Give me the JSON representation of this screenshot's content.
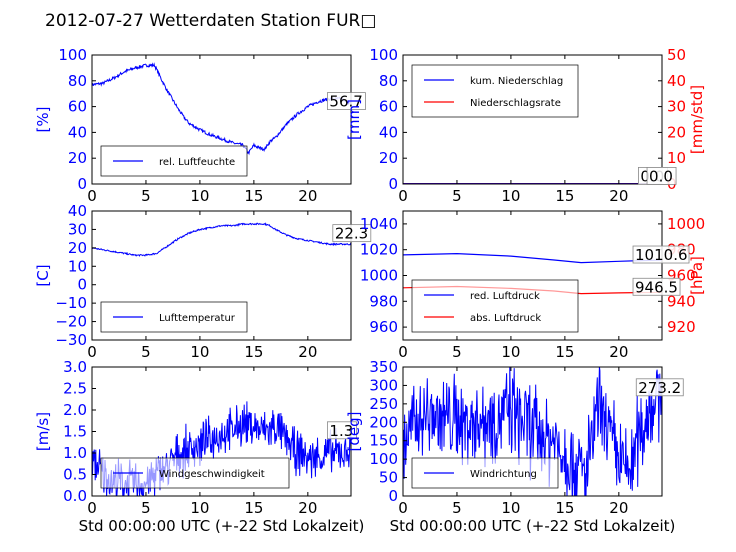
{
  "title": "2012-07-27 Wetterdaten Station FUR□",
  "colors": {
    "left_axis": "#0000ff",
    "right_axis": "#ff0000",
    "blue_line": "#0000ff",
    "red_line": "#ff0000",
    "axes": "#000000"
  },
  "chart_data": [
    {
      "id": "humidity",
      "type": "line",
      "ylabel": "[%]",
      "xlabel": "",
      "xlim": [
        0,
        24
      ],
      "ylim": [
        0,
        100
      ],
      "yticks": [
        "0",
        "20",
        "40",
        "60",
        "80",
        "100"
      ],
      "xticks": [
        "0",
        "5",
        "10",
        "15",
        "20"
      ],
      "legend_position": "lower-left",
      "series": [
        {
          "name": "rel. Luftfeuchte",
          "color": "#0000ff",
          "noise": 1.2,
          "points": [
            [
              0,
              77
            ],
            [
              1,
              78
            ],
            [
              2,
              82
            ],
            [
              3,
              87
            ],
            [
              4,
              90
            ],
            [
              5,
              92
            ],
            [
              5.8,
              92
            ],
            [
              6.5,
              80
            ],
            [
              7,
              72
            ],
            [
              7.5,
              65
            ],
            [
              8,
              58
            ],
            [
              8.5,
              52
            ],
            [
              9,
              47
            ],
            [
              10,
              42
            ],
            [
              11,
              38
            ],
            [
              12,
              35
            ],
            [
              13,
              32
            ],
            [
              14,
              30
            ],
            [
              14.5,
              24
            ],
            [
              15,
              30
            ],
            [
              15.5,
              28
            ],
            [
              16,
              27
            ],
            [
              16.5,
              33
            ],
            [
              17,
              36
            ],
            [
              18,
              46
            ],
            [
              19,
              54
            ],
            [
              20,
              60
            ],
            [
              21,
              64
            ],
            [
              22,
              66
            ],
            [
              23,
              66
            ],
            [
              24,
              62
            ]
          ]
        }
      ],
      "annotations": [
        {
          "text": "56.7",
          "x": 22.0,
          "y": 60
        }
      ]
    },
    {
      "id": "precipitation",
      "type": "line",
      "ylabel": "[mm]",
      "ylabel_right": "[mm/std]",
      "xlabel": "",
      "xlim": [
        0,
        24
      ],
      "ylim": [
        0,
        100
      ],
      "ylim_right": [
        0,
        50
      ],
      "yticks": [
        "0",
        "20",
        "40",
        "60",
        "80",
        "100"
      ],
      "yticks_right": [
        "0",
        "10",
        "20",
        "30",
        "40",
        "50"
      ],
      "xticks": [
        "0",
        "5",
        "10",
        "15",
        "20"
      ],
      "legend_position": "upper-left",
      "series": [
        {
          "name": "kum. Niederschlag",
          "color": "#0000ff",
          "noise": 0,
          "points": [
            [
              0,
              0.3
            ],
            [
              24,
              0.3
            ]
          ]
        },
        {
          "name": "Niederschlagsrate",
          "color": "#ff0000",
          "noise": 0,
          "points": [
            [
              0,
              0
            ],
            [
              24,
              0
            ]
          ]
        }
      ],
      "annotations": [
        {
          "text": "0.0",
          "x": 22.0,
          "y": 2
        },
        {
          "text": "0.0",
          "x": 22.8,
          "y": 2
        }
      ]
    },
    {
      "id": "temperature",
      "type": "line",
      "ylabel": "[C]",
      "xlabel": "",
      "xlim": [
        0,
        24
      ],
      "ylim": [
        -30,
        40
      ],
      "yticks": [
        "−30",
        "−20",
        "−10",
        "0",
        "10",
        "20",
        "30",
        "40"
      ],
      "xticks": [
        "0",
        "5",
        "10",
        "15",
        "20"
      ],
      "legend_position": "lower-left",
      "series": [
        {
          "name": "Lufttemperatur",
          "color": "#0000ff",
          "noise": 0.4,
          "points": [
            [
              0,
              20
            ],
            [
              1,
              19
            ],
            [
              2,
              18
            ],
            [
              3,
              17
            ],
            [
              4,
              16
            ],
            [
              5,
              16
            ],
            [
              6,
              17
            ],
            [
              7,
              21
            ],
            [
              8,
              25
            ],
            [
              9,
              28
            ],
            [
              10,
              30
            ],
            [
              11,
              31
            ],
            [
              12,
              32
            ],
            [
              13,
              32
            ],
            [
              14,
              33
            ],
            [
              15,
              33
            ],
            [
              16,
              33
            ],
            [
              16.5,
              32
            ],
            [
              17,
              30
            ],
            [
              18,
              27
            ],
            [
              19,
              25
            ],
            [
              20,
              24
            ],
            [
              21,
              23
            ],
            [
              22,
              22
            ],
            [
              23,
              22
            ],
            [
              24,
              22
            ]
          ]
        }
      ],
      "annotations": [
        {
          "text": "22.3",
          "x": 22.5,
          "y": 25
        }
      ]
    },
    {
      "id": "pressure",
      "type": "line",
      "ylabel": "",
      "ylabel_right": "[hPa]",
      "xlabel": "",
      "xlim": [
        0,
        24
      ],
      "ylim": [
        950,
        1050
      ],
      "ylim_right": [
        910,
        1010
      ],
      "yticks": [
        "960",
        "980",
        "1000",
        "1020",
        "1040"
      ],
      "yticks_right": [
        "920",
        "940",
        "960",
        "980",
        "1000"
      ],
      "xticks": [
        "0",
        "5",
        "10",
        "15",
        "20"
      ],
      "legend_position": "lower-left",
      "series": [
        {
          "name": "red. Luftdruck",
          "color": "#0000ff",
          "noise": 0,
          "points": [
            [
              0,
              1016
            ],
            [
              5,
              1017
            ],
            [
              10,
              1015
            ],
            [
              14,
              1012
            ],
            [
              16.5,
              1010
            ],
            [
              20,
              1011
            ],
            [
              24,
              1012
            ]
          ]
        },
        {
          "name": "abs. Luftdruck",
          "color": "#ff0000",
          "noise": 0,
          "points": [
            [
              0,
              990.5
            ],
            [
              5,
              991.5
            ],
            [
              10,
              990
            ],
            [
              14,
              988
            ],
            [
              16.5,
              986
            ],
            [
              20,
              986.5
            ],
            [
              24,
              987
            ]
          ]
        }
      ],
      "annotations": [
        {
          "text": "1010.6",
          "x": 21.5,
          "y": 1012
        },
        {
          "text": "946.5",
          "x": 21.5,
          "y": 987
        }
      ]
    },
    {
      "id": "windspeed",
      "type": "line",
      "ylabel": "[m/s]",
      "xlabel": "Std 00:00:00 UTC (+-22 Std Lokalzeit)",
      "xlim": [
        0,
        24
      ],
      "ylim": [
        0,
        3
      ],
      "yticks": [
        "0.0",
        "0.5",
        "1.0",
        "1.5",
        "2.0",
        "2.5",
        "3.0"
      ],
      "xticks": [
        "0",
        "5",
        "10",
        "15",
        "20"
      ],
      "legend_position": "lower-center",
      "series": [
        {
          "name": "Windgeschwindigkeit",
          "color": "#0000ff",
          "noise": 0.45,
          "spiky": true,
          "points": [
            [
              0,
              0.9
            ],
            [
              1,
              0.5
            ],
            [
              2,
              0.35
            ],
            [
              3,
              0.3
            ],
            [
              4,
              0.3
            ],
            [
              5,
              0.3
            ],
            [
              6,
              0.5
            ],
            [
              7,
              0.7
            ],
            [
              8,
              0.95
            ],
            [
              9,
              1.1
            ],
            [
              10,
              1.2
            ],
            [
              11,
              1.3
            ],
            [
              12,
              1.45
            ],
            [
              13,
              1.5
            ],
            [
              14,
              1.7
            ],
            [
              15,
              1.6
            ],
            [
              16,
              1.5
            ],
            [
              17,
              1.6
            ],
            [
              18,
              1.3
            ],
            [
              19,
              1.0
            ],
            [
              20,
              0.9
            ],
            [
              21,
              0.9
            ],
            [
              22,
              1.0
            ],
            [
              23,
              1.0
            ],
            [
              24,
              1.1
            ]
          ]
        }
      ],
      "annotations": [
        {
          "text": "1.3",
          "x": 22.0,
          "y": 1.4
        }
      ]
    },
    {
      "id": "winddirection",
      "type": "line",
      "ylabel": "[deg]",
      "xlabel": "Std 00:00:00 UTC (+-22 Std Lokalzeit)",
      "xlim": [
        0,
        24
      ],
      "ylim": [
        0,
        350
      ],
      "yticks": [
        "0",
        "50",
        "100",
        "150",
        "200",
        "250",
        "300",
        "350"
      ],
      "xticks": [
        "0",
        "5",
        "10",
        "15",
        "20"
      ],
      "legend_position": "lower-left",
      "series": [
        {
          "name": "Windrichtung",
          "color": "#0000ff",
          "noise": 110,
          "spiky": true,
          "points": [
            [
              0,
              150
            ],
            [
              2,
              220
            ],
            [
              4,
              210
            ],
            [
              6,
              200
            ],
            [
              8,
              210
            ],
            [
              10,
              230
            ],
            [
              12,
              180
            ],
            [
              14,
              150
            ],
            [
              16,
              80
            ],
            [
              17,
              60
            ],
            [
              18,
              230
            ],
            [
              19,
              180
            ],
            [
              20,
              90
            ],
            [
              21,
              70
            ],
            [
              22,
              180
            ],
            [
              23,
              250
            ],
            [
              24,
              270
            ]
          ]
        }
      ],
      "annotations": [
        {
          "text": "273.2",
          "x": 21.8,
          "y": 280
        }
      ]
    }
  ]
}
